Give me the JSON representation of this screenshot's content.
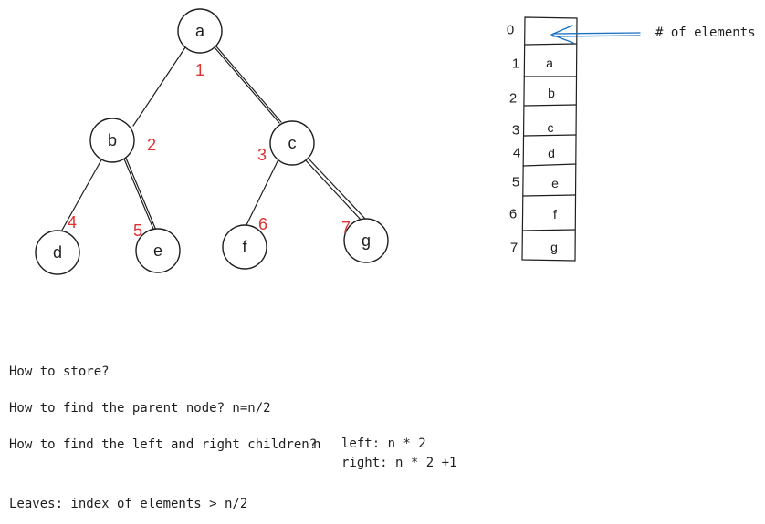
{
  "tree": {
    "nodes": [
      {
        "label": "a",
        "index": "1"
      },
      {
        "label": "b",
        "index": "2"
      },
      {
        "label": "c",
        "index": "3"
      },
      {
        "label": "d",
        "index": "4"
      },
      {
        "label": "e",
        "index": "5"
      },
      {
        "label": "f",
        "index": "6"
      },
      {
        "label": "g",
        "index": "7"
      }
    ]
  },
  "array": {
    "indices": [
      "0",
      "1",
      "2",
      "3",
      "4",
      "5",
      "6",
      "7"
    ],
    "values": [
      "",
      "a",
      "b",
      "c",
      "d",
      "e",
      "f",
      "g"
    ],
    "annotation": "# of elements"
  },
  "notes": {
    "q1": "How to store?",
    "q2": "How to find the parent node? n=n/2",
    "q3": "How to find the left and right children?",
    "q3_var": "n",
    "q3_left": "left: n * 2",
    "q3_right": "right: n * 2  +1",
    "leaves": "Leaves:  index of elements > n/2"
  },
  "colors": {
    "ink": "#1e1e1e",
    "index_red": "#e03131",
    "arrow_blue": "#1971c2"
  }
}
